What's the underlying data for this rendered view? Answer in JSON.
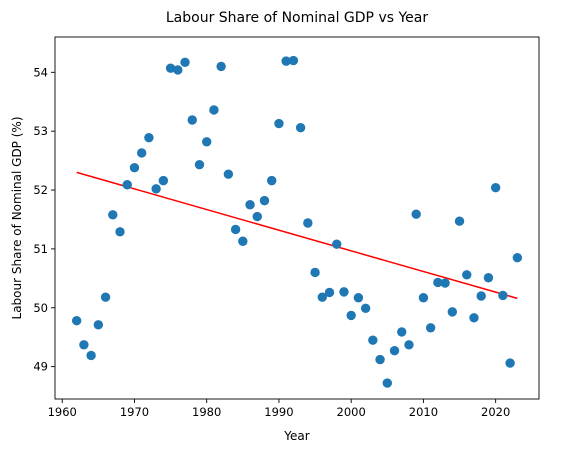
{
  "chart_data": {
    "type": "scatter",
    "title": "Labour Share of Nominal GDP vs Year",
    "xlabel": "Year",
    "ylabel": "Labour Share of Nominal GDP (%)",
    "xlim": [
      1959,
      2026
    ],
    "ylim": [
      48.45,
      54.6
    ],
    "xticks": [
      1960,
      1970,
      1980,
      1990,
      2000,
      2010,
      2020
    ],
    "yticks": [
      49,
      50,
      51,
      52,
      53,
      54
    ],
    "grid": false,
    "legend": "none",
    "colors": {
      "points": "#1f77b4",
      "trend": "#ff0000"
    },
    "series": [
      {
        "type": "scatter",
        "x": [
          1962,
          1963,
          1964,
          1965,
          1966,
          1967,
          1968,
          1969,
          1970,
          1971,
          1972,
          1973,
          1974,
          1975,
          1976,
          1977,
          1978,
          1979,
          1980,
          1981,
          1982,
          1983,
          1984,
          1985,
          1986,
          1987,
          1988,
          1989,
          1990,
          1991,
          1992,
          1993,
          1994,
          1995,
          1996,
          1997,
          1998,
          1999,
          2000,
          2001,
          2002,
          2003,
          2004,
          2005,
          2006,
          2007,
          2008,
          2009,
          2010,
          2011,
          2012,
          2013,
          2014,
          2015,
          2016,
          2017,
          2018,
          2019,
          2020,
          2021,
          2022,
          2023
        ],
        "y": [
          49.78,
          49.37,
          49.19,
          49.71,
          50.18,
          51.58,
          51.29,
          52.09,
          52.38,
          52.63,
          52.89,
          52.02,
          52.16,
          54.07,
          54.04,
          54.17,
          53.19,
          52.43,
          52.82,
          53.36,
          54.1,
          52.27,
          51.33,
          51.13,
          51.75,
          51.55,
          51.82,
          52.16,
          53.13,
          54.19,
          54.2,
          53.06,
          51.44,
          50.6,
          50.18,
          50.26,
          51.08,
          50.27,
          49.87,
          50.17,
          49.99,
          49.45,
          49.12,
          48.72,
          49.27,
          49.59,
          49.37,
          51.59,
          50.17,
          49.66,
          50.43,
          50.42,
          49.93,
          51.47,
          50.56,
          49.83,
          50.2,
          50.51,
          52.04,
          50.21,
          49.06,
          50.85
        ]
      },
      {
        "type": "line",
        "x": [
          1962,
          2023
        ],
        "y": [
          52.3,
          50.16
        ]
      }
    ]
  }
}
